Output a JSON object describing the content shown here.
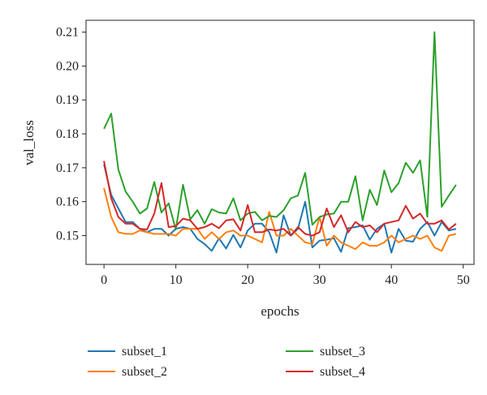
{
  "chart_data": {
    "type": "line",
    "xlabel": "epochs",
    "ylabel": "val_loss",
    "xlim": [
      -2.5,
      51.5
    ],
    "ylim": [
      0.1415,
      0.2135
    ],
    "xticks": [
      0,
      10,
      20,
      30,
      40,
      50
    ],
    "yticks": [
      0.15,
      0.16,
      0.17,
      0.18,
      0.19,
      0.2,
      0.21
    ],
    "legend_position": "bottom",
    "x": [
      0,
      1,
      2,
      3,
      4,
      5,
      6,
      7,
      8,
      9,
      10,
      11,
      12,
      13,
      14,
      15,
      16,
      17,
      18,
      19,
      20,
      21,
      22,
      23,
      24,
      25,
      26,
      27,
      28,
      29,
      30,
      31,
      32,
      33,
      34,
      35,
      36,
      37,
      38,
      39,
      40,
      41,
      42,
      43,
      44,
      45,
      46,
      47,
      48,
      49
    ],
    "series": [
      {
        "name": "subset_1",
        "color": "#1f77b4",
        "values": [
          0.171,
          0.162,
          0.158,
          0.154,
          0.154,
          0.152,
          0.151,
          0.152,
          0.152,
          0.15,
          0.152,
          0.1525,
          0.152,
          0.149,
          0.1475,
          0.1455,
          0.1492,
          0.1462,
          0.1502,
          0.1465,
          0.1515,
          0.1535,
          0.1535,
          0.151,
          0.145,
          0.156,
          0.15,
          0.152,
          0.16,
          0.1465,
          0.1485,
          0.1488,
          0.1492,
          0.1452,
          0.1522,
          0.1525,
          0.153,
          0.1488,
          0.152,
          0.1535,
          0.145,
          0.152,
          0.1485,
          0.1482,
          0.152,
          0.154,
          0.15,
          0.154,
          0.1515,
          0.152
        ]
      },
      {
        "name": "subset_2",
        "color": "#ff7f0e",
        "values": [
          0.164,
          0.1555,
          0.151,
          0.1505,
          0.1505,
          0.1515,
          0.151,
          0.1505,
          0.1505,
          0.1505,
          0.15,
          0.152,
          0.152,
          0.152,
          0.149,
          0.151,
          0.149,
          0.151,
          0.1515,
          0.15,
          0.15,
          0.149,
          0.148,
          0.157,
          0.15,
          0.15,
          0.152,
          0.15,
          0.148,
          0.1475,
          0.1555,
          0.147,
          0.15,
          0.148,
          0.147,
          0.146,
          0.148,
          0.147,
          0.147,
          0.148,
          0.15,
          0.148,
          0.149,
          0.15,
          0.149,
          0.15,
          0.1465,
          0.1455,
          0.15,
          0.1505
        ]
      },
      {
        "name": "subset_3",
        "color": "#2ca02c",
        "values": [
          0.1815,
          0.186,
          0.1695,
          0.163,
          0.16,
          0.1565,
          0.158,
          0.1658,
          0.1568,
          0.1595,
          0.1518,
          0.165,
          0.1548,
          0.1575,
          0.1535,
          0.1578,
          0.1568,
          0.1565,
          0.161,
          0.1545,
          0.1565,
          0.157,
          0.1545,
          0.1558,
          0.1555,
          0.1575,
          0.161,
          0.1618,
          0.1685,
          0.1532,
          0.1555,
          0.1562,
          0.1565,
          0.16,
          0.16,
          0.1675,
          0.1545,
          0.1635,
          0.159,
          0.1692,
          0.1628,
          0.1655,
          0.1715,
          0.1685,
          0.1722,
          0.1555,
          0.21,
          0.1585,
          0.1618,
          0.165
        ]
      },
      {
        "name": "subset_4",
        "color": "#d62728",
        "values": [
          0.172,
          0.161,
          0.1555,
          0.1535,
          0.1535,
          0.152,
          0.1518,
          0.1565,
          0.1655,
          0.1525,
          0.1528,
          0.155,
          0.1545,
          0.152,
          0.1525,
          0.1535,
          0.1522,
          0.1545,
          0.1548,
          0.1515,
          0.159,
          0.151,
          0.151,
          0.1518,
          0.1515,
          0.152,
          0.15,
          0.1525,
          0.1505,
          0.15,
          0.151,
          0.158,
          0.1525,
          0.156,
          0.151,
          0.154,
          0.1525,
          0.153,
          0.151,
          0.1535,
          0.154,
          0.1545,
          0.1588,
          0.155,
          0.1565,
          0.1535,
          0.1535,
          0.1545,
          0.1518,
          0.1535
        ]
      }
    ]
  }
}
